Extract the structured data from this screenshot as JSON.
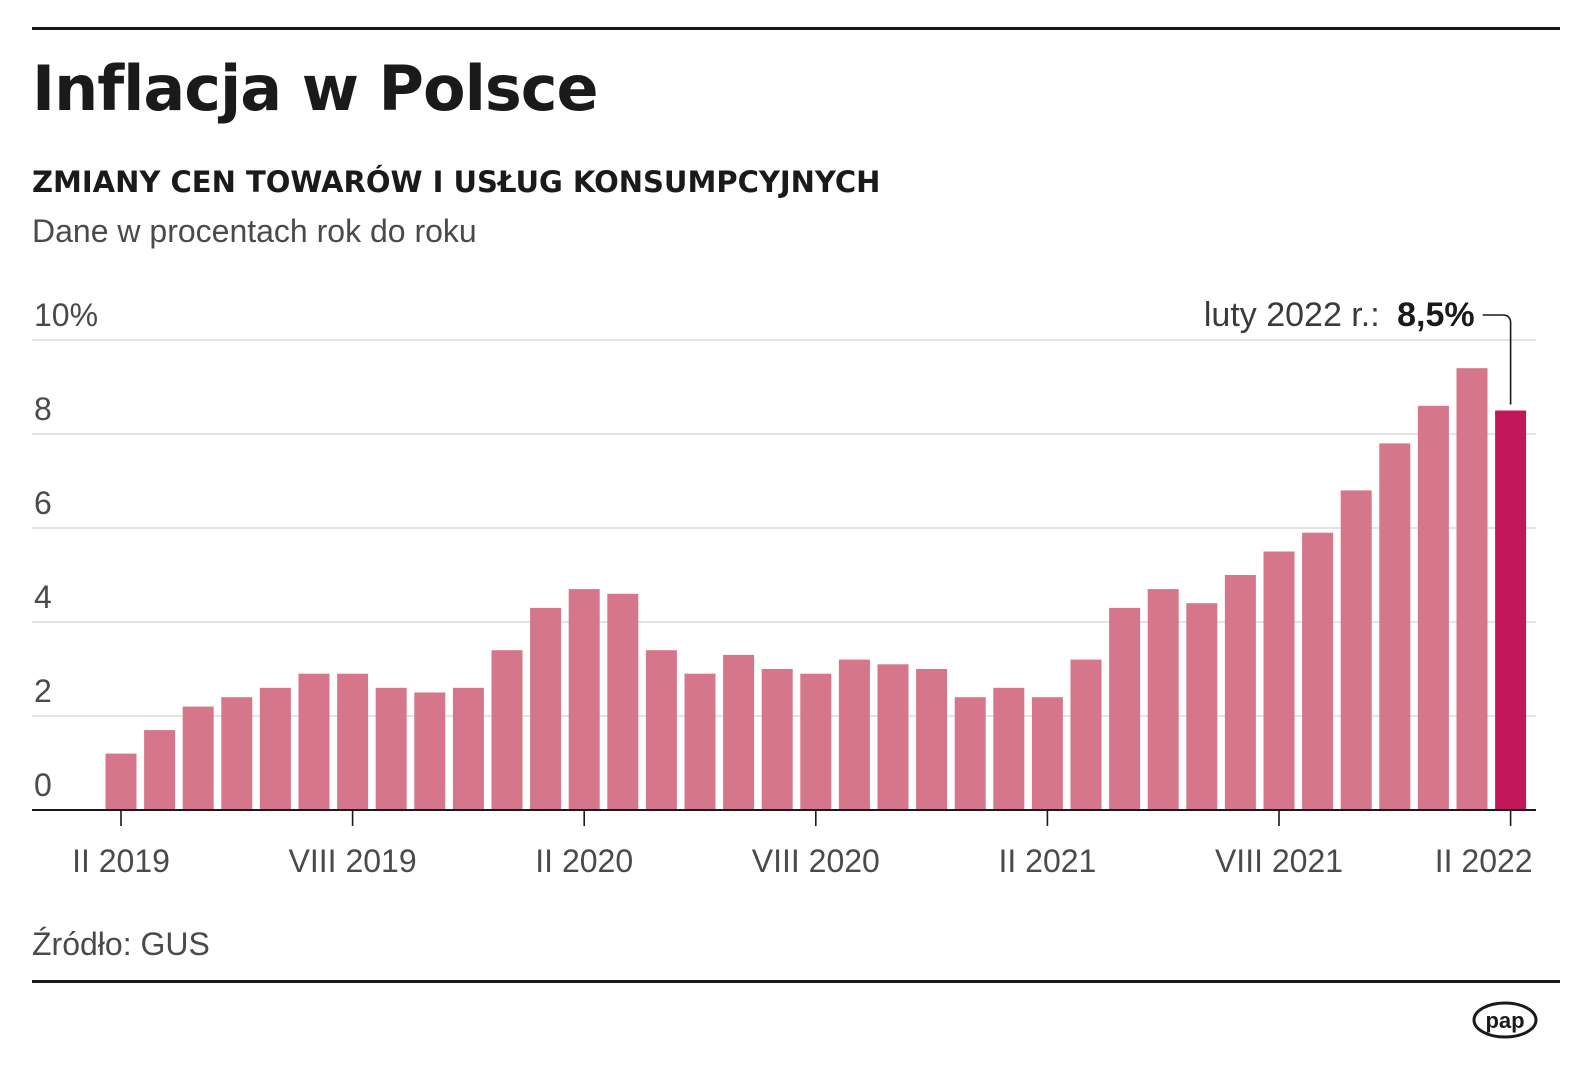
{
  "header": {
    "title": "Inflacja w Polsce",
    "subtitle": "ZMIANY CEN TOWARÓW I USŁUG KONSUMPCYJNYCH",
    "unit_note": "Dane w procentach rok do roku"
  },
  "footer": {
    "source": "Źródło: GUS",
    "logo_text": "pap"
  },
  "colors": {
    "bar": "#d5768a",
    "bar_highlight": "#c2185b",
    "grid": "#dcdcdc",
    "axis": "#1a1a1a"
  },
  "chart_data": {
    "type": "bar",
    "title": "Inflacja w Polsce",
    "subtitle": "ZMIANY CEN TOWARÓW I USŁUG KONSUMPCYJNYCH",
    "ylabel": "Dane w procentach rok do roku",
    "xlabel": "",
    "ylim": [
      0,
      10
    ],
    "y_ticks": [
      {
        "value": 0,
        "label": "0"
      },
      {
        "value": 2,
        "label": "2"
      },
      {
        "value": 4,
        "label": "4"
      },
      {
        "value": 6,
        "label": "6"
      },
      {
        "value": 8,
        "label": "8"
      },
      {
        "value": 10,
        "label": "10%"
      }
    ],
    "grid": true,
    "months": [
      "II 2019",
      "III 2019",
      "IV 2019",
      "V 2019",
      "VI 2019",
      "VII 2019",
      "VIII 2019",
      "IX 2019",
      "X 2019",
      "XI 2019",
      "XII 2019",
      "I 2020",
      "II 2020",
      "III 2020",
      "IV 2020",
      "V 2020",
      "VI 2020",
      "VII 2020",
      "VIII 2020",
      "IX 2020",
      "X 2020",
      "XI 2020",
      "XII 2020",
      "I 2021",
      "II 2021",
      "III 2021",
      "IV 2021",
      "V 2021",
      "VI 2021",
      "VII 2021",
      "VIII 2021",
      "IX 2021",
      "X 2021",
      "XI 2021",
      "XII 2021",
      "I 2022",
      "II 2022"
    ],
    "values": [
      1.2,
      1.7,
      2.2,
      2.4,
      2.6,
      2.9,
      2.9,
      2.6,
      2.5,
      2.6,
      3.4,
      4.3,
      4.7,
      4.6,
      3.4,
      2.9,
      3.3,
      3.0,
      2.9,
      3.2,
      3.1,
      3.0,
      2.4,
      2.6,
      2.4,
      3.2,
      4.3,
      4.7,
      4.4,
      5.0,
      5.5,
      5.9,
      6.8,
      7.8,
      8.6,
      9.4,
      8.5
    ],
    "x_tick_labels": [
      {
        "index": 0,
        "label": "II 2019"
      },
      {
        "index": 6,
        "label": "VIII 2019"
      },
      {
        "index": 12,
        "label": "II 2020"
      },
      {
        "index": 18,
        "label": "VIII 2020"
      },
      {
        "index": 24,
        "label": "II 2021"
      },
      {
        "index": 30,
        "label": "VIII 2021"
      },
      {
        "index": 36,
        "label": "II 2022"
      }
    ],
    "highlight_index": 36,
    "annotation": {
      "label": "luty 2022 r.:",
      "value": "8,5%"
    }
  }
}
